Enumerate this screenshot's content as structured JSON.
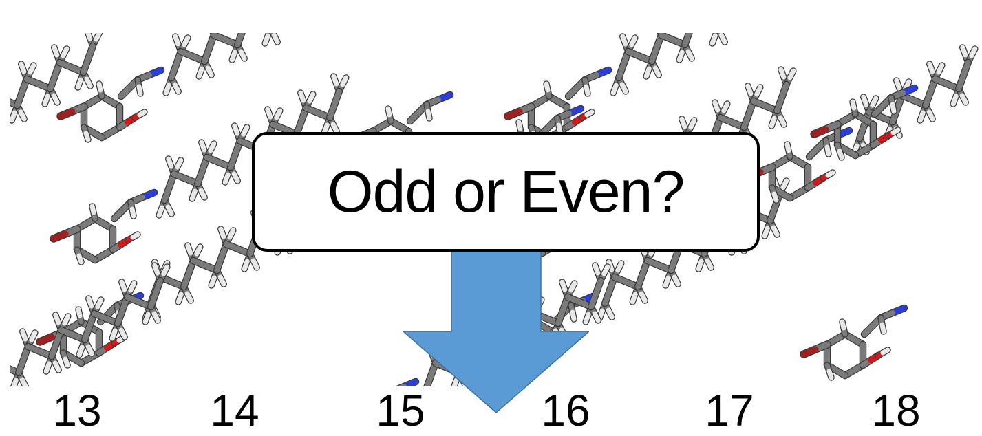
{
  "callout": {
    "text": "Odd or Even?"
  },
  "carbon_counts": [
    "13",
    "14",
    "15",
    "16",
    "17",
    "18"
  ],
  "colors": {
    "carbon": "#7a7a7a",
    "hydrogen": "#e8e8e8",
    "nitrogen": "#2a3ee0",
    "oxygen": "#d81818",
    "bromine": "#a02020",
    "arrow": "#5b9bd5"
  }
}
